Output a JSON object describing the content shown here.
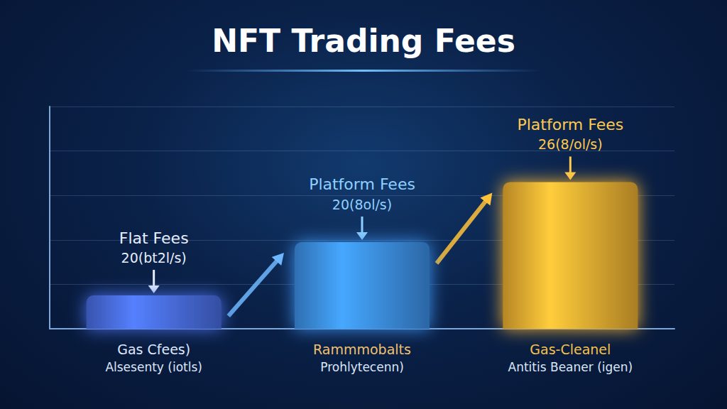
{
  "chart_data": {
    "type": "bar",
    "title": "NFT Trading Fees",
    "categories": [
      "Gas Cfees)\nAlsesenty (iotls)",
      "Rammmobalts\nProhlytecenn)",
      "Gas-Cleanel\nAntitis Beaner (igen)"
    ],
    "values": [
      15,
      39,
      66
    ],
    "colors": [
      "#4a6fe6",
      "#3d92ec",
      "#f2b233"
    ],
    "annotations": [
      [
        "Flat Fees",
        "20(bt2l/s)"
      ],
      [
        "Platform Fees",
        "20(8ol/s)"
      ],
      [
        "Platform Fees",
        "26(8/ol/s)"
      ]
    ],
    "ylim": [
      0,
      100
    ],
    "yticks": [
      0,
      20,
      40,
      60,
      80,
      100
    ],
    "grid": true,
    "tick_labels": "x"
  }
}
